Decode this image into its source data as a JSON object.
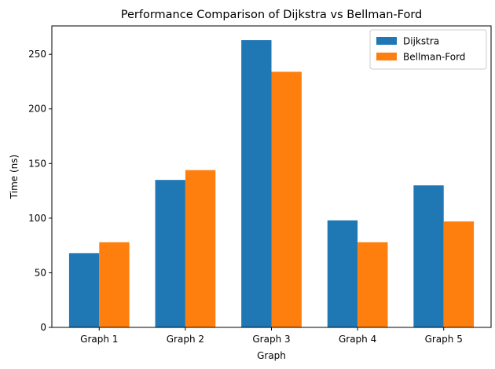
{
  "chart_data": {
    "type": "bar",
    "title": "Performance Comparison of Dijkstra vs Bellman-Ford",
    "xlabel": "Graph",
    "ylabel": "Time (ns)",
    "categories": [
      "Graph 1",
      "Graph 2",
      "Graph 3",
      "Graph 4",
      "Graph 5"
    ],
    "series": [
      {
        "name": "Dijkstra",
        "color": "#1f77b4",
        "values": [
          68,
          135,
          263,
          98,
          130
        ]
      },
      {
        "name": "Bellman-Ford",
        "color": "#ff7f0e",
        "values": [
          78,
          144,
          234,
          78,
          97
        ]
      }
    ],
    "ylim": [
      0,
      276
    ],
    "yticks": [
      0,
      50,
      100,
      150,
      200,
      250
    ],
    "grid": false,
    "legend": "top-right"
  }
}
